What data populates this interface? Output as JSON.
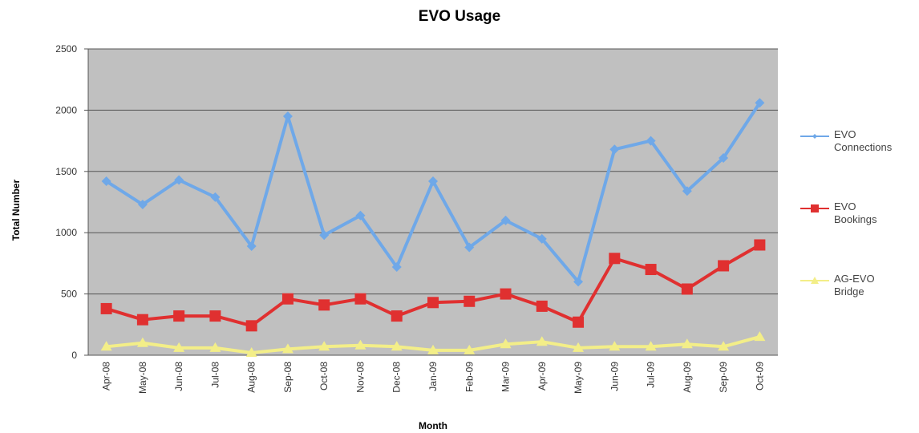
{
  "chart_data": {
    "type": "line",
    "title": "EVO Usage",
    "x_label": "Month",
    "y_label": "Total Number",
    "categories": [
      "Apr-08",
      "May-08",
      "Jun-08",
      "Jul-08",
      "Aug-08",
      "Sep-08",
      "Oct-08",
      "Nov-08",
      "Dec-08",
      "Jan-09",
      "Feb-09",
      "Mar-09",
      "Apr-09",
      "May-09",
      "Jun-09",
      "Jul-09",
      "Aug-09",
      "Sep-09",
      "Oct-09"
    ],
    "series": [
      {
        "name": "EVO Connections",
        "color": "#6fa8e8",
        "marker": "diamond",
        "values": [
          1420,
          1230,
          1430,
          1290,
          890,
          1950,
          980,
          1140,
          720,
          1420,
          880,
          1100,
          950,
          600,
          1680,
          1750,
          1340,
          1610,
          2060
        ]
      },
      {
        "name": "EVO Bookings",
        "color": "#e03030",
        "marker": "square",
        "values": [
          380,
          290,
          320,
          320,
          240,
          460,
          410,
          460,
          320,
          430,
          440,
          500,
          400,
          270,
          790,
          700,
          540,
          730,
          900
        ]
      },
      {
        "name": "AG-EVO Bridge",
        "color": "#f3ee88",
        "marker": "triangle",
        "values": [
          70,
          100,
          60,
          60,
          20,
          50,
          70,
          80,
          70,
          40,
          40,
          90,
          110,
          60,
          70,
          70,
          90,
          70,
          150
        ]
      }
    ],
    "ylim": [
      0,
      2500
    ],
    "yticks": [
      0,
      500,
      1000,
      1500,
      2000,
      2500
    ],
    "grid": true,
    "legend": "right"
  }
}
